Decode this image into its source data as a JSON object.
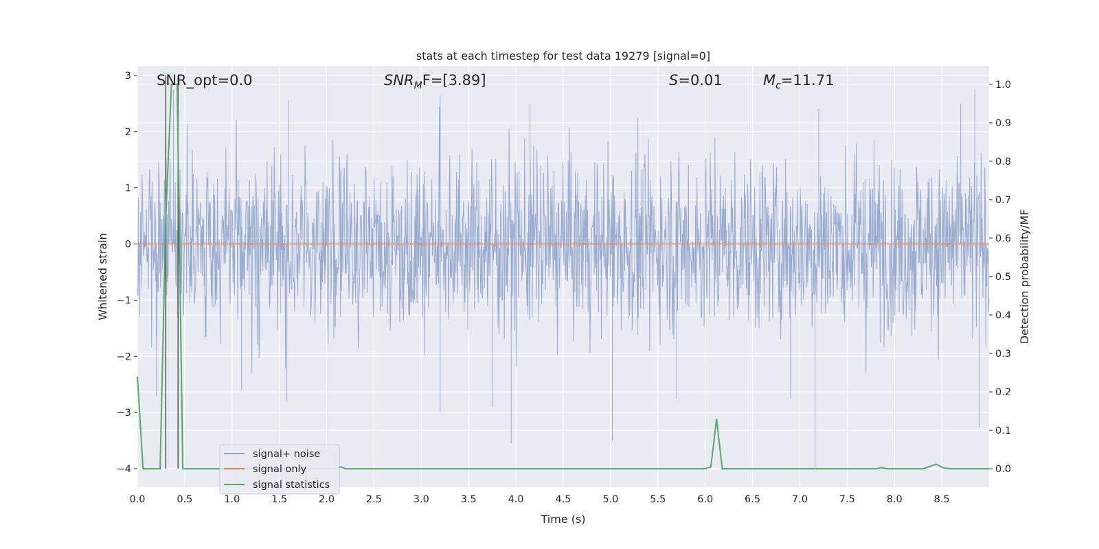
{
  "chart_data": {
    "type": "line",
    "title": "stats at each timestep for test data 19279 [signal=0]",
    "xlabel": "Time (s)",
    "ylabel_left": "Whitened strain",
    "ylabel_right": "Detection probability/MF",
    "xlim": [
      0.0,
      9.0
    ],
    "ylim_left": [
      -4.33,
      3.17
    ],
    "ylim_right": [
      -0.048,
      1.048
    ],
    "x_ticks": [
      "0.0",
      "0.5",
      "1.0",
      "1.5",
      "2.0",
      "2.5",
      "3.0",
      "3.5",
      "4.0",
      "4.5",
      "5.0",
      "5.5",
      "6.0",
      "6.5",
      "7.0",
      "7.5",
      "8.0",
      "8.5"
    ],
    "y_ticks_left": [
      "−4",
      "−3",
      "−2",
      "−1",
      "0",
      "1",
      "2",
      "3"
    ],
    "y_ticks_right": [
      "0.0",
      "0.1",
      "0.2",
      "0.3",
      "0.4",
      "0.5",
      "0.6",
      "0.7",
      "0.8",
      "0.9",
      "1.0"
    ],
    "grid": true,
    "legend_placement": "lower-left",
    "annotations": {
      "snr_opt": "SNR_opt=0.0",
      "snr_mf_sym": "SNR",
      "snr_mf_sub": "M",
      "snr_mf_rest": "F=[3.89]",
      "s_sym": "S",
      "s_rest": "=0.01",
      "mc_sym": "M",
      "mc_sub": "c",
      "mc_rest": "=11.71"
    },
    "vertical_markers_x": [
      0.3,
      0.43
    ],
    "series": [
      {
        "name": "signal+ noise",
        "axis": "left",
        "color": "#8fa4cc",
        "description_values": "whitened noise, dense band roughly ±1.5 with spikes up to ~2.8 and down to ~-4.0",
        "band": [
          -1.3,
          1.3
        ],
        "spikes": [
          {
            "x": 0.2,
            "y": -2.7
          },
          {
            "x": 0.38,
            "y": 2.75
          },
          {
            "x": 1.1,
            "y": -2.6
          },
          {
            "x": 1.58,
            "y": -2.8
          },
          {
            "x": 3.2,
            "y": -3.0
          },
          {
            "x": 3.75,
            "y": -2.9
          },
          {
            "x": 3.95,
            "y": -3.55
          },
          {
            "x": 5.02,
            "y": -3.5
          },
          {
            "x": 5.7,
            "y": -2.75
          },
          {
            "x": 6.9,
            "y": -2.75
          },
          {
            "x": 7.16,
            "y": -4.0
          },
          {
            "x": 8.9,
            "y": -3.25
          },
          {
            "x": 8.85,
            "y": 2.75
          },
          {
            "x": 8.7,
            "y": 2.5
          },
          {
            "x": 7.2,
            "y": 2.4
          },
          {
            "x": 3.2,
            "y": 2.65
          },
          {
            "x": 1.6,
            "y": 2.55
          },
          {
            "x": 4.15,
            "y": 2.5
          }
        ]
      },
      {
        "name": "signal only",
        "axis": "left",
        "color": "#dd8452",
        "x": [
          0.0,
          9.0
        ],
        "y": [
          0.0,
          0.0
        ]
      },
      {
        "name": "signal statistics",
        "axis": "right",
        "color": "#55a868",
        "x": [
          0.0,
          0.06,
          0.12,
          0.18,
          0.24,
          0.3,
          0.36,
          0.42,
          0.48,
          0.5,
          0.54,
          0.6,
          2.0,
          2.1,
          2.15,
          2.2,
          6.0,
          6.06,
          6.12,
          6.18,
          6.24,
          7.8,
          7.86,
          7.92,
          8.3,
          8.44,
          8.52,
          8.6,
          9.0
        ],
        "y": [
          0.24,
          0.0,
          0.0,
          0.0,
          0.0,
          0.65,
          1.0,
          1.0,
          0.0,
          0.0,
          0.0,
          0.0,
          0.0,
          0.0,
          0.005,
          0.0,
          0.0,
          0.005,
          0.13,
          0.0,
          0.0,
          0.0,
          0.003,
          0.0,
          0.0,
          0.012,
          0.002,
          0.0,
          0.0
        ]
      }
    ]
  },
  "vertical_marker_color": "#555555",
  "axes_bg": "#eaeaf2"
}
